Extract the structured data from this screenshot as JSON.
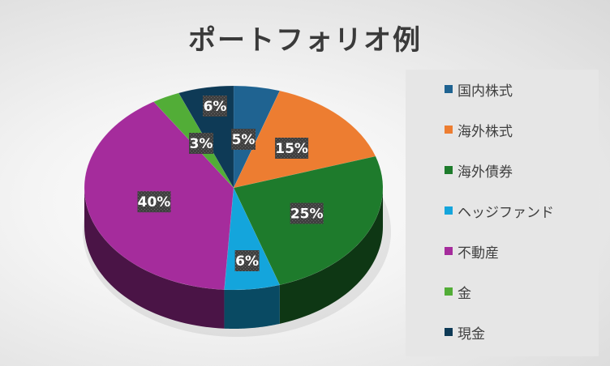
{
  "chart_data": {
    "type": "pie",
    "title": "ポートフォリオ例",
    "categories": [
      "国内株式",
      "海外株式",
      "海外債券",
      "ヘッジファンド",
      "不動産",
      "金",
      "現金"
    ],
    "values": [
      5,
      15,
      25,
      6,
      40,
      3,
      6
    ],
    "data_labels": [
      "5%",
      "15%",
      "25%",
      "6%",
      "40%",
      "3%",
      "6%"
    ],
    "colors": [
      "#1f6391",
      "#ed7d31",
      "#1e7b2c",
      "#14a5dc",
      "#a52c9c",
      "#52ad37",
      "#0e3a56"
    ],
    "legend_position": "right",
    "style": "3d"
  }
}
